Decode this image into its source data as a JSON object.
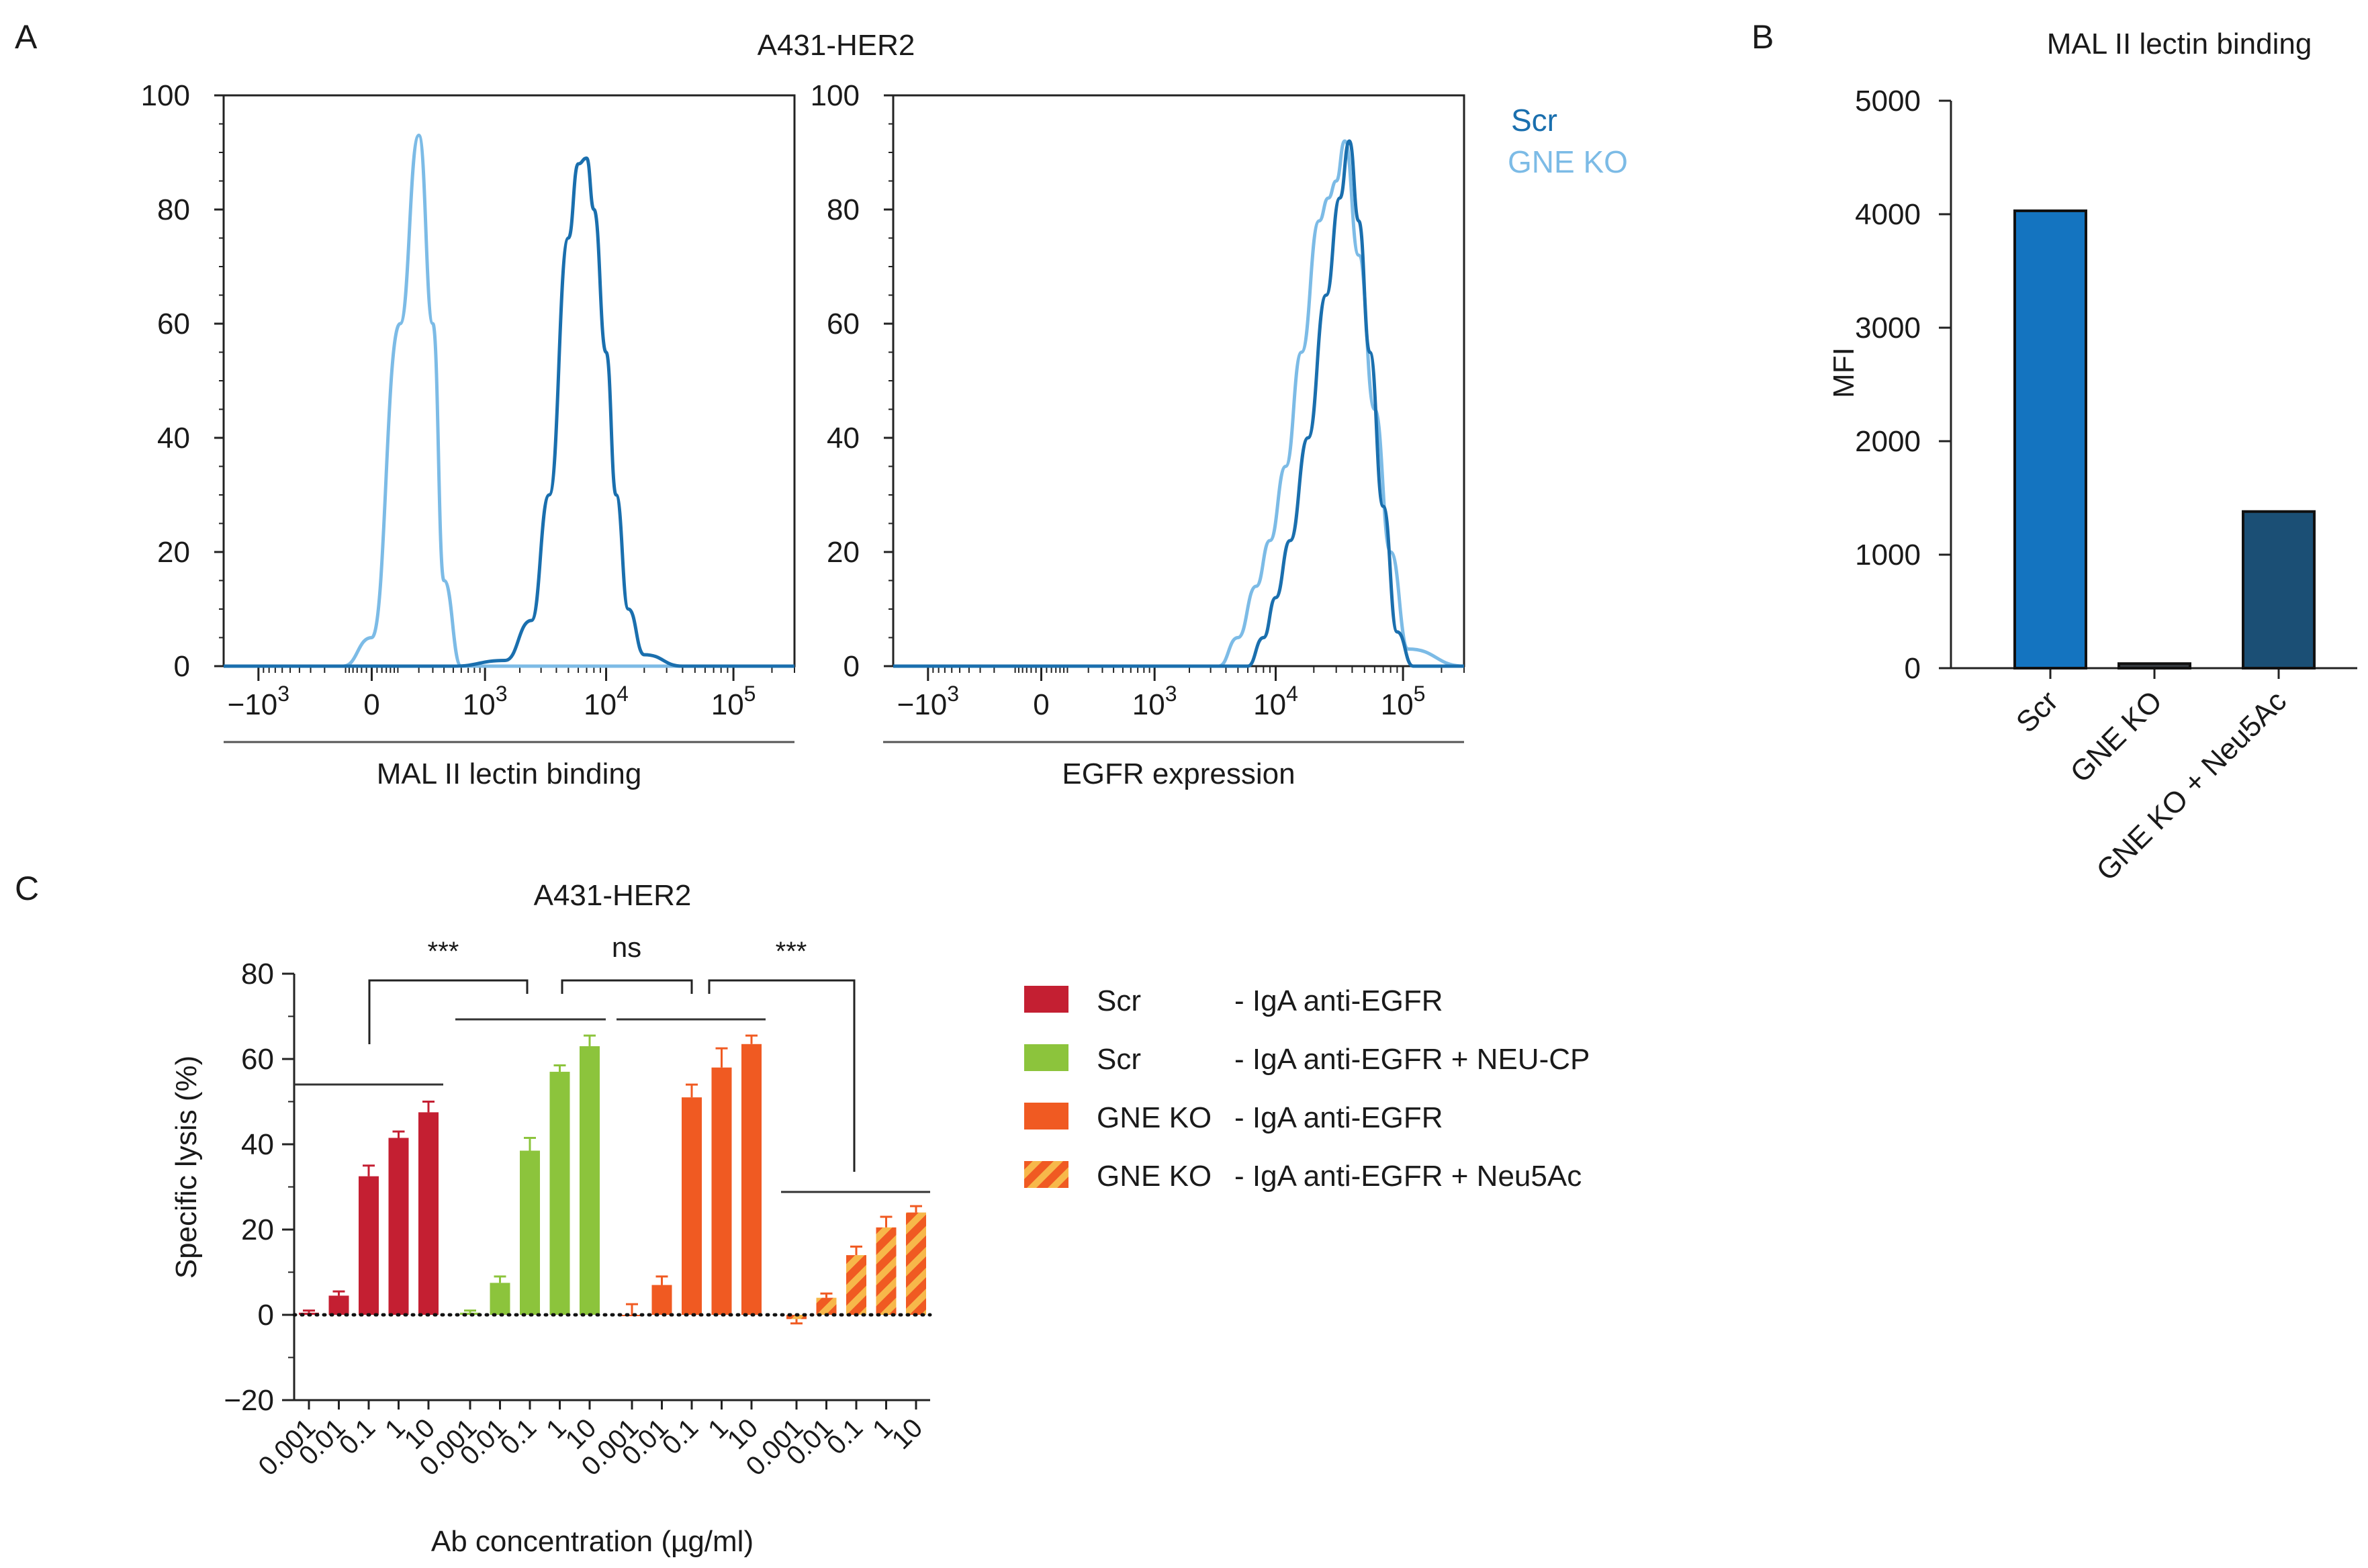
{
  "colors": {
    "scr_dark": "#1a6fae",
    "gne_light": "#7cbbe6",
    "bar_b1": "#1474c0",
    "bar_b2": "#3a3f45",
    "bar_b3": "#1b4f75",
    "red": "#c41f32",
    "green": "#8cc43c",
    "orange": "#f05a22"
  },
  "panelA": {
    "label": "A",
    "title": "A431-HER2",
    "legend": [
      "Scr",
      "GNE KO"
    ],
    "left_xlabel": "MAL II lectin binding",
    "right_xlabel": "EGFR expression",
    "yticks": [
      "100",
      "80",
      "60",
      "40",
      "20",
      "0"
    ],
    "xticks": [
      {
        "base": "−10",
        "exp": "3"
      },
      {
        "base": "0",
        "exp": ""
      },
      {
        "base": "10",
        "exp": "3"
      },
      {
        "base": "10",
        "exp": "4"
      },
      {
        "base": "10",
        "exp": "5"
      }
    ]
  },
  "panelB": {
    "label": "B",
    "title": "MAL II lectin binding",
    "ylabel": "MFI",
    "yticks": [
      "5000",
      "4000",
      "3000",
      "2000",
      "1000",
      "0"
    ],
    "categories": [
      "Scr",
      "GNE KO",
      "GNE KO + Neu5Ac"
    ]
  },
  "panelC": {
    "label": "C",
    "title": "A431-HER2",
    "ylabel": "Specific lysis (%)",
    "xlabel": "Ab concentration (µg/ml)",
    "yticks": [
      "80",
      "60",
      "40",
      "20",
      "0",
      "−20"
    ],
    "conc_labels": [
      "0.001",
      "0.01",
      "0.1",
      "1",
      "10"
    ],
    "sig": [
      "***",
      "ns",
      "***"
    ],
    "legend": [
      {
        "group": "Scr",
        "label": "- IgA anti-EGFR"
      },
      {
        "group": "Scr",
        "label": "- IgA anti-EGFR + NEU-CP"
      },
      {
        "group": "GNE KO",
        "label": "- IgA anti-EGFR"
      },
      {
        "group": "GNE KO",
        "label": "- IgA anti-EGFR + Neu5Ac"
      }
    ]
  },
  "chart_data": [
    {
      "type": "line",
      "panel": "A-left",
      "title": "A431-HER2",
      "xlabel": "MAL II lectin binding",
      "ylabel": "",
      "ylim": [
        0,
        100
      ],
      "xscale": "biexponential",
      "series": [
        {
          "name": "Scr",
          "x": [
            -2000,
            500,
            1500,
            2500,
            3500,
            5000,
            6000,
            7000,
            8000,
            10000,
            12000,
            15000,
            20000,
            40000,
            300000
          ],
          "y": [
            0,
            0,
            1,
            8,
            30,
            75,
            88,
            89,
            80,
            55,
            30,
            10,
            2,
            0,
            0
          ]
        },
        {
          "name": "GNE KO",
          "x": [
            -2000,
            -100,
            0,
            100,
            200,
            300,
            400,
            600,
            300000
          ],
          "y": [
            0,
            0,
            5,
            60,
            93,
            60,
            15,
            0,
            0
          ]
        }
      ]
    },
    {
      "type": "line",
      "panel": "A-right",
      "title": "A431-HER2",
      "xlabel": "EGFR expression",
      "ylabel": "",
      "ylim": [
        0,
        100
      ],
      "xscale": "biexponential",
      "series": [
        {
          "name": "Scr",
          "x": [
            -2000,
            6000,
            8000,
            10000,
            13000,
            18000,
            25000,
            32000,
            38000,
            45000,
            55000,
            70000,
            90000,
            120000,
            300000
          ],
          "y": [
            0,
            0,
            5,
            12,
            22,
            40,
            65,
            82,
            92,
            78,
            55,
            28,
            6,
            0,
            0
          ]
        },
        {
          "name": "GNE KO",
          "x": [
            -2000,
            3500,
            5000,
            7000,
            9000,
            12000,
            16000,
            22000,
            26000,
            30000,
            35000,
            45000,
            60000,
            80000,
            110000,
            300000
          ],
          "y": [
            0,
            0,
            5,
            14,
            22,
            35,
            55,
            78,
            82,
            85,
            92,
            72,
            45,
            20,
            3,
            0
          ]
        }
      ]
    },
    {
      "type": "bar",
      "panel": "B",
      "title": "MAL II lectin binding",
      "xlabel": "",
      "ylabel": "MFI",
      "ylim": [
        0,
        5000
      ],
      "categories": [
        "Scr",
        "GNE KO",
        "GNE KO + Neu5Ac"
      ],
      "values": [
        4030,
        40,
        1380
      ]
    },
    {
      "type": "bar",
      "panel": "C",
      "title": "A431-HER2",
      "xlabel": "Ab concentration (µg/ml)",
      "ylabel": "Specific lysis (%)",
      "ylim": [
        -20,
        80
      ],
      "categories": [
        "0.001",
        "0.01",
        "0.1",
        "1",
        "10"
      ],
      "series": [
        {
          "name": "Scr - IgA anti-EGFR",
          "values": [
            0.5,
            4.5,
            32.5,
            41.5,
            47.5
          ],
          "errors": [
            0.5,
            1.0,
            2.5,
            1.5,
            2.5
          ]
        },
        {
          "name": "Scr - IgA anti-EGFR + NEU-CP",
          "values": [
            0.5,
            7.5,
            38.5,
            57.0,
            63.0
          ],
          "errors": [
            0.5,
            1.5,
            3.0,
            1.5,
            2.5
          ]
        },
        {
          "name": "GNE KO - IgA anti-EGFR",
          "values": [
            0.0,
            7.0,
            51.0,
            58.0,
            63.5
          ],
          "errors": [
            2.5,
            2.0,
            3.0,
            4.5,
            2.0
          ]
        },
        {
          "name": "GNE KO - IgA anti-EGFR + Neu5Ac",
          "values": [
            -1.0,
            4.0,
            14.0,
            20.5,
            24.0
          ],
          "errors": [
            1.0,
            1.0,
            2.0,
            2.5,
            1.5
          ]
        }
      ],
      "significance": [
        "***",
        "ns",
        "***"
      ]
    }
  ]
}
